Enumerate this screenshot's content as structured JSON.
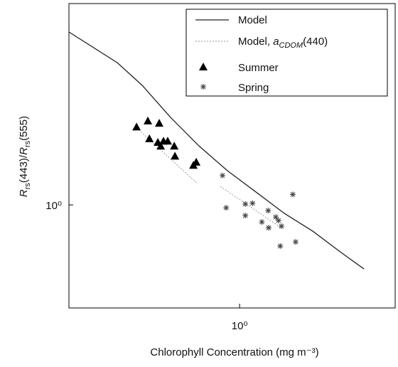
{
  "chart_data": {
    "type": "scatter",
    "xlabel": "Chlorophyll Concentration (mg m⁻³)",
    "ylabel": [
      "R",
      "rs",
      "(443)/",
      "R",
      "rs",
      "(555)"
    ],
    "xscale": "log",
    "yscale": "log",
    "xlim": [
      0.1,
      8
    ],
    "ylim": [
      0.3,
      10
    ],
    "xticks": [
      {
        "value": 1,
        "label": "10⁰"
      }
    ],
    "yticks": [
      {
        "value": 1,
        "label": "10⁰"
      }
    ],
    "series": [
      {
        "name": "Model",
        "style": "solid",
        "color": "#222",
        "x": [
          0.1,
          0.192,
          0.269,
          0.394,
          0.579,
          0.849,
          1.25,
          1.83,
          2.69,
          3.94,
          5.36
        ],
        "values": [
          7.54,
          5.27,
          4.04,
          2.78,
          1.99,
          1.49,
          1.16,
          0.905,
          0.735,
          0.573,
          0.473
        ]
      },
      {
        "name": [
          "Model, ",
          "a",
          "CDOM",
          "(440)"
        ],
        "style": "dotted",
        "color": "#aaa",
        "x": [
          0.264,
          0.568,
          0.67,
          0.772,
          1.75
        ],
        "values": [
          2.35,
          1.28,
          null,
          1.24,
          0.766
        ]
      },
      {
        "name": "Summer",
        "style": "triangle",
        "color": "#000",
        "x": [
          0.249,
          0.29,
          0.338,
          0.296,
          0.332,
          0.345,
          0.358,
          0.379,
          0.414,
          0.418,
          0.536,
          0.557
        ],
        "values": [
          2.49,
          2.67,
          2.6,
          2.17,
          2.08,
          1.99,
          2.11,
          2.11,
          1.99,
          1.77,
          1.59,
          1.65
        ]
      },
      {
        "name": "Spring",
        "style": "star",
        "color": "#444",
        "x": [
          0.794,
          0.834,
          1.08,
          1.19,
          1.08,
          1.35,
          1.47,
          1.48,
          1.63,
          1.69,
          1.76,
          2.05,
          1.73,
          2.13
        ],
        "values": [
          1.41,
          0.967,
          1.01,
          1.02,
          0.883,
          0.819,
          0.936,
          0.766,
          0.868,
          0.833,
          0.78,
          1.13,
          0.618,
          0.649
        ]
      }
    ]
  }
}
